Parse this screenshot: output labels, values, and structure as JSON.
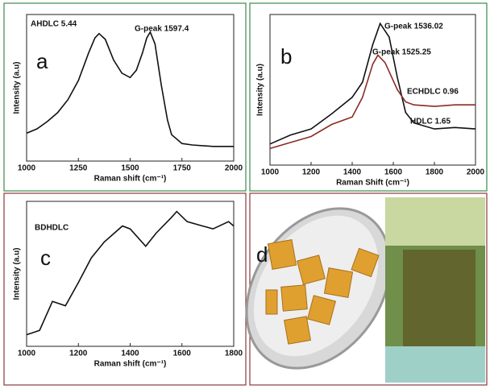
{
  "chart_data": [
    {
      "type": "line",
      "panel_label": "a",
      "x_label": "Raman shift (cm⁻¹)",
      "y_label": "Intensity (a.u)",
      "annotations": [
        "AHDLC 5.44",
        "G-peak  1597.4"
      ],
      "xlim": [
        1000,
        2000
      ],
      "xticks": [
        1000,
        1250,
        1500,
        1750,
        2000
      ],
      "ylim": [
        0,
        100
      ],
      "series": [
        {
          "color": "#111111",
          "x": [
            1000,
            1050,
            1100,
            1150,
            1200,
            1250,
            1300,
            1330,
            1350,
            1380,
            1420,
            1460,
            1500,
            1530,
            1560,
            1580,
            1597,
            1620,
            1650,
            1680,
            1700,
            1750,
            1800,
            1900,
            2000
          ],
          "values": [
            19,
            22,
            27,
            33,
            42,
            55,
            74,
            84,
            87,
            83,
            69,
            60,
            57,
            62,
            74,
            84,
            88,
            80,
            52,
            28,
            18,
            12,
            11,
            10,
            10
          ]
        }
      ]
    },
    {
      "type": "line",
      "panel_label": "b",
      "x_label": "Raman Shift (cm⁻¹)",
      "y_label": "Intensity (a.u)",
      "annotations": [
        "G-peak 1536.02",
        "G-peak 1525.25"
      ],
      "xlim": [
        1000,
        2000
      ],
      "xticks": [
        1000,
        1200,
        1400,
        1600,
        1800,
        2000
      ],
      "ylim": [
        0,
        100
      ],
      "series": [
        {
          "name": "HDLC 1.65",
          "color": "#111111",
          "x": [
            1000,
            1100,
            1200,
            1300,
            1400,
            1450,
            1500,
            1536,
            1580,
            1620,
            1660,
            1700,
            1800,
            1900,
            2000
          ],
          "values": [
            14,
            20,
            24,
            34,
            45,
            55,
            80,
            94,
            85,
            58,
            35,
            28,
            24,
            25,
            24
          ]
        },
        {
          "name": "ECHDLC 0.96",
          "color": "#8b2b24",
          "x": [
            1000,
            1100,
            1200,
            1300,
            1400,
            1450,
            1500,
            1525,
            1560,
            1620,
            1660,
            1700,
            1800,
            1900,
            2000
          ],
          "values": [
            11,
            15,
            19,
            27,
            32,
            45,
            67,
            73,
            68,
            50,
            42,
            40,
            39,
            40,
            40
          ]
        }
      ]
    },
    {
      "type": "line",
      "panel_label": "c",
      "x_label": "Raman shift (cm⁻¹)",
      "y_label": "Intensity (a.u)",
      "annotations": [
        "BDHDLC"
      ],
      "xlim": [
        1000,
        1800
      ],
      "xticks": [
        1000,
        1200,
        1400,
        1600,
        1800
      ],
      "ylim": [
        0,
        100
      ],
      "series": [
        {
          "color": "#111111",
          "x": [
            1000,
            1050,
            1100,
            1150,
            1200,
            1250,
            1300,
            1370,
            1400,
            1460,
            1500,
            1560,
            1580,
            1620,
            1680,
            1720,
            1780,
            1800
          ],
          "values": [
            8,
            11,
            31,
            28,
            44,
            61,
            72,
            83,
            81,
            69,
            78,
            89,
            93,
            86,
            83,
            81,
            86,
            83
          ]
        }
      ]
    }
  ],
  "photo_panel": {
    "label": "d"
  }
}
